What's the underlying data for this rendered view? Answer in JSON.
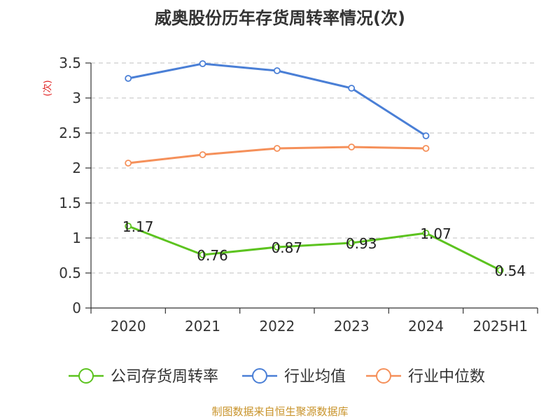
{
  "chart_data": {
    "type": "line",
    "title": "威奥股份历年存货周转率情况(次)",
    "ylabel": "(次)",
    "ylim": [
      0,
      3.5
    ],
    "yticks": [
      "0",
      "0.5",
      "1",
      "1.5",
      "2",
      "2.5",
      "3",
      "3.5"
    ],
    "categories": [
      "2020",
      "2021",
      "2022",
      "2023",
      "2024",
      "2025H1"
    ],
    "grid": true,
    "legend_position": "bottom",
    "series": [
      {
        "name": "公司存货周转率",
        "color": "#5cc31f",
        "values": [
          1.17,
          0.76,
          0.87,
          0.93,
          1.07,
          0.54
        ],
        "labels": [
          "1.17",
          "0.76",
          "0.87",
          "0.93",
          "1.07",
          "0.54"
        ]
      },
      {
        "name": "行业均值",
        "color": "#4a7fd6",
        "values": [
          3.28,
          3.49,
          3.39,
          3.14,
          2.46,
          null
        ]
      },
      {
        "name": "行业中位数",
        "color": "#f5905a",
        "values": [
          2.07,
          2.19,
          2.28,
          2.3,
          2.28,
          null
        ]
      }
    ],
    "ylabel_color": "#e02020"
  },
  "source": {
    "text": "制图数据来自恒生聚源数据库",
    "color": "#c8932a"
  }
}
